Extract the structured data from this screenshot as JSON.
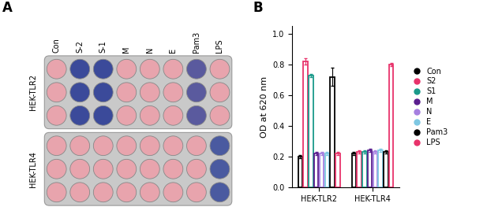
{
  "panel_labels": [
    "A",
    "B"
  ],
  "plate": {
    "columns": [
      "Con",
      "S-2",
      "S-1",
      "M",
      "N",
      "E",
      "Pam3",
      "LPS"
    ],
    "replicates": 3,
    "rows": [
      {
        "label": "HEK-TLR2",
        "well_colors": [
          "#e8a4ad",
          "#3b4a9a",
          "#3b4a9a",
          "#e8a4ad",
          "#e8a4ad",
          "#e8a4ad",
          "#5a5a9e",
          "#e8a4ad"
        ]
      },
      {
        "label": "HEK-TLR4",
        "well_colors": [
          "#e8a4ad",
          "#e8a4ad",
          "#e8a4ad",
          "#e8a4ad",
          "#e8a4ad",
          "#e8a4ad",
          "#e8a4ad",
          "#4a5aa0"
        ]
      }
    ]
  },
  "chart_data": {
    "type": "bar",
    "categories": [
      "HEK-TLR2",
      "HEK-TLR4"
    ],
    "y_label": "OD at 620 nm",
    "ylim": [
      0,
      1.05
    ],
    "yticks": [
      {
        "value": 0,
        "label": "0.0"
      },
      {
        "value": 0.2,
        "label": "0.2"
      },
      {
        "value": 0.4,
        "label": "0.4"
      },
      {
        "value": 0.6,
        "label": "0.6"
      },
      {
        "value": 0.8,
        "label": "0.8"
      },
      {
        "value": 1.0,
        "label": "1.0"
      }
    ],
    "legend": "center left",
    "marker": "o",
    "series": [
      {
        "name": "Con",
        "color": "#000000",
        "values": [
          0.2,
          0.22
        ],
        "errors": [
          0.01,
          0.01
        ]
      },
      {
        "name": "S2",
        "color": "#e8336b",
        "values": [
          0.82,
          0.23
        ],
        "errors": [
          0.02,
          0.01
        ]
      },
      {
        "name": "S1",
        "color": "#1a9a8a",
        "values": [
          0.73,
          0.23
        ],
        "errors": [
          0.01,
          0.01
        ]
      },
      {
        "name": "M",
        "color": "#5b1f8f",
        "values": [
          0.22,
          0.24
        ],
        "errors": [
          0.01,
          0.01
        ]
      },
      {
        "name": "N",
        "color": "#a680e0",
        "values": [
          0.22,
          0.23
        ],
        "errors": [
          0.01,
          0.01
        ]
      },
      {
        "name": "E",
        "color": "#7ec8e3",
        "values": [
          0.22,
          0.24
        ],
        "errors": [
          0.01,
          0.01
        ]
      },
      {
        "name": "Pam3",
        "color": "#000000",
        "values": [
          0.72,
          0.23
        ],
        "errors": [
          0.06,
          0.01
        ]
      },
      {
        "name": "LPS",
        "color": "#e8336b",
        "values": [
          0.22,
          0.8
        ],
        "errors": [
          0.01,
          0.01
        ]
      }
    ]
  }
}
